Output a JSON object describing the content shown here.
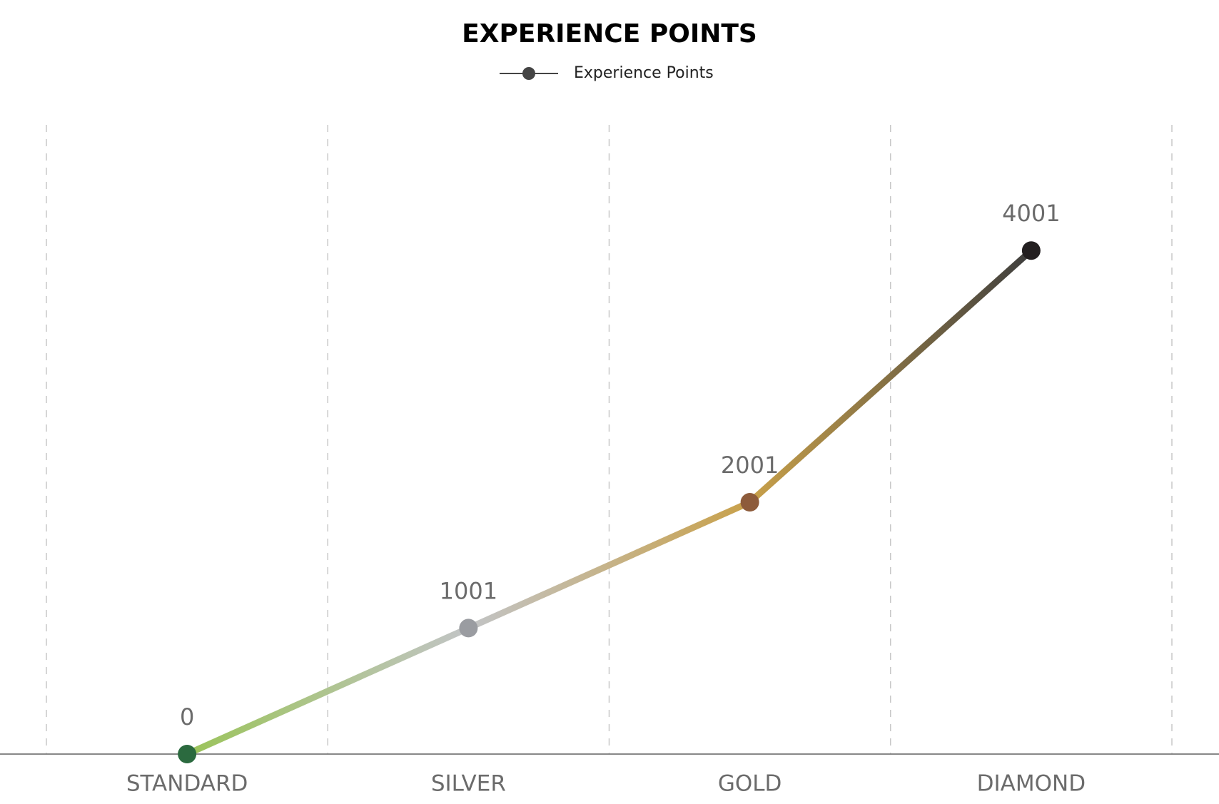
{
  "chart_data": {
    "type": "line",
    "title": "EXPERIENCE POINTS",
    "categories": [
      "STANDARD",
      "SILVER",
      "GOLD",
      "DIAMOND"
    ],
    "series": [
      {
        "name": "Experience Points",
        "color": "#444444",
        "values": [
          0,
          1001,
          2001,
          4001
        ],
        "point_colors": [
          "#2b6a3f",
          "#9a9ca1",
          "#8d5b3b",
          "#231f20"
        ],
        "line_colors": [
          "#9bc45a",
          "#c2c4c6",
          "#c9a14a",
          "#3e3e3e"
        ]
      }
    ],
    "ylim": [
      0,
      5000
    ],
    "grid": true,
    "legend": "top"
  }
}
